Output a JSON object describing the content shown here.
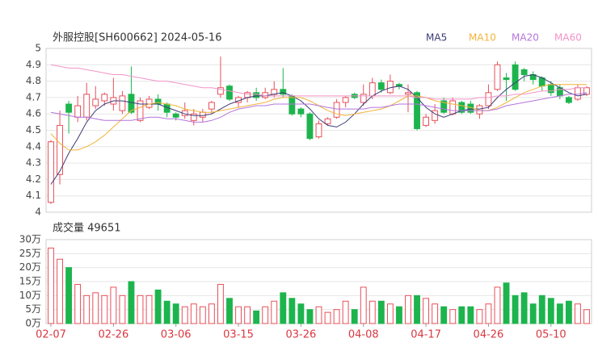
{
  "chart_data": [
    {
      "type": "candlestick",
      "title": "外服控股[SH600662] 2024-05-16",
      "up_color": "#e8505b",
      "down_color": "#1db44d",
      "open": [
        4.06,
        4.23,
        4.66,
        4.58,
        4.58,
        4.65,
        4.68,
        4.66,
        4.62,
        4.72,
        4.56,
        4.64,
        4.69,
        4.66,
        4.6,
        4.59,
        4.56,
        4.58,
        4.63,
        4.72,
        4.77,
        4.67,
        4.7,
        4.73,
        4.7,
        4.72,
        4.75,
        4.71,
        4.63,
        4.6,
        4.46,
        4.54,
        4.58,
        4.67,
        4.72,
        4.67,
        4.71,
        4.79,
        4.73,
        4.78,
        4.72,
        4.73,
        4.53,
        4.56,
        4.68,
        4.6,
        4.67,
        4.66,
        4.6,
        4.65,
        4.75,
        4.82,
        4.9,
        4.87,
        4.84,
        4.82,
        4.78,
        4.76,
        4.7,
        4.69,
        4.72
      ],
      "high": [
        4.44,
        4.62,
        4.68,
        4.71,
        4.79,
        4.77,
        4.73,
        4.82,
        4.74,
        4.89,
        4.7,
        4.71,
        4.72,
        4.67,
        4.61,
        4.67,
        4.63,
        4.63,
        4.68,
        4.95,
        4.78,
        4.71,
        4.74,
        4.76,
        4.76,
        4.8,
        4.88,
        4.72,
        4.64,
        4.61,
        4.56,
        4.58,
        4.69,
        4.71,
        4.73,
        4.78,
        4.82,
        4.81,
        4.84,
        4.79,
        4.78,
        4.74,
        4.6,
        4.66,
        4.7,
        4.7,
        4.68,
        4.68,
        4.66,
        4.78,
        4.92,
        4.85,
        4.92,
        4.88,
        4.86,
        4.83,
        4.8,
        4.78,
        4.71,
        4.78,
        4.77
      ],
      "low": [
        4.05,
        4.17,
        4.48,
        4.55,
        4.56,
        4.63,
        4.65,
        4.62,
        4.6,
        4.6,
        4.55,
        4.63,
        4.62,
        4.58,
        4.56,
        4.57,
        4.53,
        4.55,
        4.6,
        4.7,
        4.68,
        4.64,
        4.67,
        4.68,
        4.69,
        4.7,
        4.7,
        4.59,
        4.58,
        4.44,
        4.45,
        4.53,
        4.57,
        4.64,
        4.69,
        4.65,
        4.69,
        4.73,
        4.72,
        4.75,
        4.61,
        4.5,
        4.52,
        4.54,
        4.6,
        4.59,
        4.6,
        4.6,
        4.57,
        4.63,
        4.74,
        4.68,
        4.74,
        4.8,
        4.78,
        4.74,
        4.71,
        4.69,
        4.66,
        4.68,
        4.71
      ],
      "close": [
        4.43,
        4.53,
        4.61,
        4.65,
        4.72,
        4.69,
        4.72,
        4.7,
        4.71,
        4.61,
        4.68,
        4.69,
        4.66,
        4.61,
        4.58,
        4.62,
        4.6,
        4.61,
        4.67,
        4.76,
        4.69,
        4.7,
        4.73,
        4.7,
        4.73,
        4.75,
        4.72,
        4.6,
        4.6,
        4.45,
        4.54,
        4.57,
        4.67,
        4.7,
        4.7,
        4.72,
        4.79,
        4.75,
        4.8,
        4.77,
        4.73,
        4.51,
        4.58,
        4.62,
        4.61,
        4.68,
        4.61,
        4.61,
        4.65,
        4.73,
        4.9,
        4.81,
        4.75,
        4.84,
        4.81,
        4.77,
        4.73,
        4.71,
        4.67,
        4.76,
        4.76
      ],
      "series": [
        {
          "name": "MA5",
          "color": "#3b3b78",
          "values": [
            4.17,
            4.25,
            4.36,
            4.45,
            4.55,
            4.62,
            4.66,
            4.68,
            4.68,
            4.67,
            4.66,
            4.66,
            4.66,
            4.64,
            4.62,
            4.6,
            4.59,
            4.59,
            4.6,
            4.63,
            4.66,
            4.68,
            4.7,
            4.71,
            4.71,
            4.72,
            4.73,
            4.71,
            4.68,
            4.63,
            4.57,
            4.53,
            4.52,
            4.55,
            4.6,
            4.66,
            4.71,
            4.74,
            4.76,
            4.77,
            4.75,
            4.7,
            4.64,
            4.6,
            4.58,
            4.6,
            4.62,
            4.63,
            4.63,
            4.64,
            4.7,
            4.75,
            4.79,
            4.83,
            4.84,
            4.82,
            4.79,
            4.76,
            4.73,
            4.71,
            4.72
          ]
        },
        {
          "name": "MA10",
          "color": "#f2b43a",
          "values": [
            4.48,
            4.42,
            4.38,
            4.38,
            4.4,
            4.43,
            4.47,
            4.52,
            4.57,
            4.62,
            4.64,
            4.66,
            4.67,
            4.66,
            4.65,
            4.63,
            4.62,
            4.61,
            4.61,
            4.62,
            4.63,
            4.64,
            4.65,
            4.66,
            4.67,
            4.69,
            4.7,
            4.7,
            4.7,
            4.68,
            4.65,
            4.62,
            4.6,
            4.59,
            4.6,
            4.61,
            4.62,
            4.63,
            4.65,
            4.68,
            4.71,
            4.71,
            4.7,
            4.68,
            4.67,
            4.66,
            4.65,
            4.64,
            4.62,
            4.62,
            4.64,
            4.67,
            4.7,
            4.73,
            4.75,
            4.77,
            4.78,
            4.78,
            4.78,
            4.78,
            4.78
          ]
        },
        {
          "name": "MA20",
          "color": "#b574dc",
          "values": [
            4.61,
            4.6,
            4.59,
            4.58,
            4.58,
            4.57,
            4.56,
            4.56,
            4.56,
            4.56,
            4.57,
            4.58,
            4.58,
            4.57,
            4.57,
            4.56,
            4.55,
            4.55,
            4.56,
            4.58,
            4.61,
            4.63,
            4.64,
            4.65,
            4.65,
            4.66,
            4.66,
            4.66,
            4.66,
            4.66,
            4.65,
            4.64,
            4.63,
            4.63,
            4.63,
            4.63,
            4.64,
            4.64,
            4.65,
            4.66,
            4.66,
            4.66,
            4.65,
            4.64,
            4.63,
            4.62,
            4.62,
            4.62,
            4.62,
            4.62,
            4.63,
            4.65,
            4.66,
            4.67,
            4.68,
            4.69,
            4.7,
            4.71,
            4.72,
            4.72,
            4.73
          ]
        },
        {
          "name": "MA60",
          "color": "#f294c8",
          "values": [
            4.9,
            4.89,
            4.88,
            4.88,
            4.87,
            4.86,
            4.85,
            4.84,
            4.84,
            4.83,
            4.82,
            4.81,
            4.8,
            4.8,
            4.79,
            4.78,
            4.77,
            4.76,
            4.76,
            4.75,
            4.74,
            4.73,
            4.72,
            4.72,
            4.71,
            4.71,
            4.71,
            4.71,
            4.71,
            4.71,
            4.71,
            4.71,
            4.71,
            4.71,
            4.71,
            4.71,
            4.71,
            4.71,
            4.71,
            4.71,
            4.71,
            4.7,
            4.7,
            4.69,
            4.69,
            4.69,
            4.69,
            4.69,
            4.7,
            4.7,
            4.71,
            4.71,
            4.72,
            4.72,
            4.73,
            4.74,
            4.74,
            4.75,
            4.75,
            4.76,
            4.76
          ]
        }
      ],
      "ylim": [
        4,
        5
      ],
      "yticks": [
        4,
        4.1,
        4.2,
        4.3,
        4.4,
        4.5,
        4.6,
        4.7,
        4.8,
        4.9,
        5
      ],
      "grid": true
    },
    {
      "type": "bar",
      "title": "成交量 49651",
      "categories": [
        "02-07",
        null,
        null,
        null,
        null,
        null,
        null,
        "02-26",
        null,
        null,
        null,
        null,
        null,
        null,
        "03-06",
        null,
        null,
        null,
        null,
        null,
        null,
        "03-15",
        null,
        null,
        null,
        null,
        null,
        null,
        "03-26",
        null,
        null,
        null,
        null,
        null,
        null,
        "04-08",
        null,
        null,
        null,
        null,
        null,
        null,
        "04-17",
        null,
        null,
        null,
        null,
        null,
        null,
        "04-26",
        null,
        null,
        null,
        null,
        null,
        null,
        "05-10",
        null,
        null,
        null,
        null
      ],
      "values": [
        27,
        23,
        20,
        14,
        10,
        11,
        10,
        13,
        10,
        15,
        10,
        10,
        12,
        8,
        7,
        6,
        7,
        6,
        7,
        14,
        9,
        6,
        6,
        4.5,
        6,
        8,
        11,
        9,
        7,
        5,
        6,
        4,
        5,
        8,
        5,
        13,
        8,
        8,
        7,
        6,
        10,
        10,
        9,
        7,
        6,
        5,
        6,
        6,
        5,
        7,
        13,
        14.5,
        10,
        11,
        7,
        10,
        9,
        7,
        8,
        7,
        4.97
      ],
      "ylim": [
        0,
        30
      ],
      "yticks": [
        {
          "value": 0,
          "label": "0万"
        },
        {
          "value": 5,
          "label": "5万"
        },
        {
          "value": 10,
          "label": "10万"
        },
        {
          "value": 15,
          "label": "15万"
        },
        {
          "value": 20,
          "label": "20万"
        },
        {
          "value": 25,
          "label": "25万"
        },
        {
          "value": 30,
          "label": "30万"
        }
      ],
      "grid": true
    }
  ]
}
